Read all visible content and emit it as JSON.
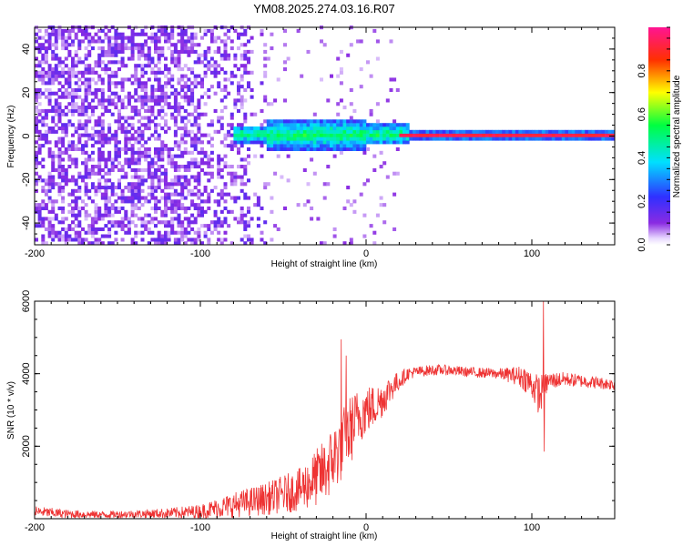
{
  "chart_data": [
    {
      "type": "heatmap",
      "title": "YM08.2025.274.03.16.R07",
      "xlabel": "Height of straight line (km)",
      "ylabel": "Frequency (Hz)",
      "xlim": [
        -200,
        150
      ],
      "ylim": [
        -50,
        50
      ],
      "x_ticks": [
        -200,
        -100,
        0,
        100
      ],
      "y_ticks": [
        -40,
        -20,
        0,
        20,
        40
      ],
      "colorbar": {
        "label": "Normalized spectral amplitude",
        "range": [
          0,
          1
        ],
        "ticks": [
          "0.0",
          "0.2",
          "0.4",
          "0.6",
          "0.8"
        ],
        "colormap": "hsv-like: white (0) → purple → blue → cyan → green → yellow → red → magenta (1)"
      },
      "features": {
        "noise_region_x": [
          -200,
          -60
        ],
        "noise_amplitude": 0.1,
        "spread_region_x": [
          -80,
          25
        ],
        "spread_halfwidth_hz": [
          7,
          4
        ],
        "tone_frequency_hz": 0,
        "tone_region_x": [
          20,
          150
        ],
        "tone_amplitude": 0.95
      }
    },
    {
      "type": "line",
      "xlabel": "Height of straight line (km)",
      "ylabel": "SNR (10 * v/v)",
      "xlim": [
        -200,
        150
      ],
      "ylim": [
        0,
        6000
      ],
      "x_ticks": [
        -200,
        -100,
        0,
        100
      ],
      "y_ticks": [
        2000,
        4000,
        6000
      ],
      "color": "#ee3333",
      "series": [
        {
          "name": "SNR",
          "x": [
            -200,
            -180,
            -160,
            -140,
            -120,
            -100,
            -80,
            -60,
            -40,
            -25,
            -15,
            -10,
            -5,
            0,
            5,
            10,
            15,
            20,
            25,
            30,
            40,
            50,
            60,
            80,
            90,
            95,
            100,
            103,
            105,
            107,
            110,
            120,
            130,
            150
          ],
          "y": [
            200,
            130,
            110,
            130,
            150,
            200,
            380,
            550,
            800,
            1300,
            2000,
            2400,
            2800,
            3000,
            3100,
            3300,
            3600,
            3800,
            4000,
            4050,
            4100,
            4100,
            4050,
            4000,
            3950,
            3900,
            3700,
            3500,
            3400,
            3600,
            3800,
            3850,
            3800,
            3700
          ],
          "noise": [
            150,
            120,
            100,
            110,
            140,
            200,
            350,
            450,
            600,
            900,
            1000,
            1000,
            800,
            700,
            600,
            500,
            400,
            250,
            180,
            150,
            150,
            140,
            140,
            150,
            250,
            350,
            400,
            500,
            600,
            400,
            250,
            200,
            180,
            160
          ]
        }
      ],
      "spikes": [
        {
          "x": -15,
          "y": 4950
        },
        {
          "x": -12,
          "y": 4500
        },
        {
          "x": 107,
          "y": 6000
        },
        {
          "x": 107.5,
          "y": 1850
        }
      ]
    }
  ]
}
